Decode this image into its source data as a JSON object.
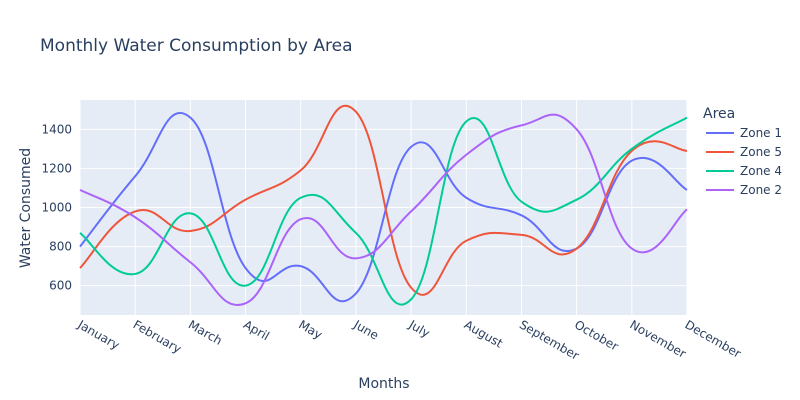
{
  "chart_data": {
    "type": "line",
    "title": "Monthly Water Consumption by Area",
    "xlabel": "Months",
    "ylabel": "Water Consumed",
    "legend_title": "Area",
    "legend_position": "right",
    "grid": true,
    "ylim": [
      450,
      1550
    ],
    "yticks": [
      600,
      800,
      1000,
      1200,
      1400
    ],
    "categories": [
      "January",
      "February",
      "March",
      "April",
      "May",
      "June",
      "July",
      "August",
      "September",
      "October",
      "November",
      "December"
    ],
    "series": [
      {
        "name": "Zone 1",
        "color": "#636efa",
        "values": [
          800,
          1160,
          1460,
          690,
          700,
          560,
          1310,
          1050,
          960,
          790,
          1240,
          1090
        ]
      },
      {
        "name": "Zone 5",
        "color": "#ef553b",
        "values": [
          690,
          980,
          880,
          1040,
          1190,
          1490,
          590,
          830,
          860,
          790,
          1290,
          1290
        ]
      },
      {
        "name": "Zone 4",
        "color": "#00cc96",
        "values": [
          870,
          660,
          970,
          600,
          1050,
          870,
          530,
          1440,
          1030,
          1040,
          1300,
          1460
        ]
      },
      {
        "name": "Zone 2",
        "color": "#ab63fa",
        "values": [
          1090,
          950,
          720,
          510,
          940,
          740,
          980,
          1270,
          1420,
          1400,
          790,
          990
        ]
      }
    ]
  }
}
